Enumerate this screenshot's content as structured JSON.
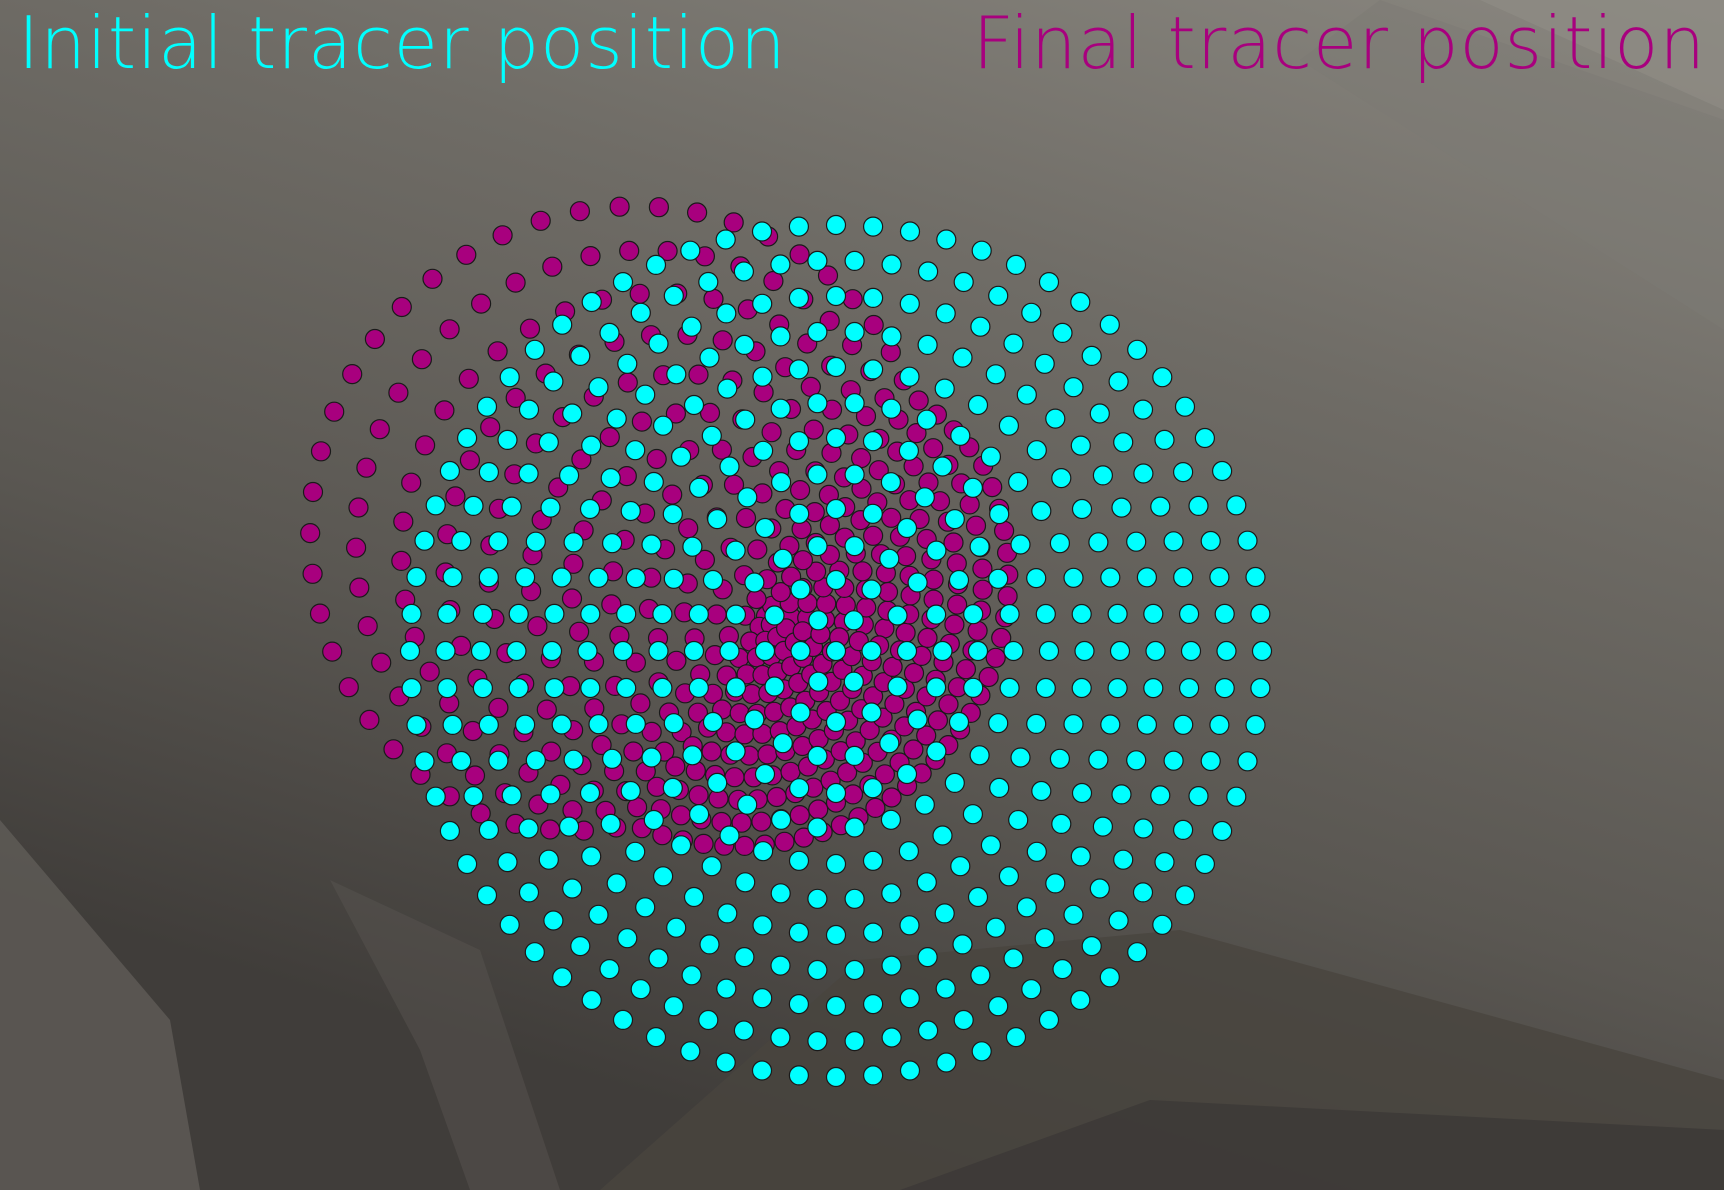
{
  "labels": {
    "initial": "Initial tracer position",
    "final": "Final tracer position"
  },
  "colors": {
    "initial": "#00ffff",
    "final": "#a8007e",
    "outline": "#1a1a1a",
    "background_light": "#8a8780",
    "background_dark": "#403d3a"
  },
  "tracers": {
    "initial": {
      "rings": 12,
      "ring_spacing": 1,
      "points_per_ring_step": 6
    },
    "final_distortion": "outward stretch toward upper-left, inward toward lower-right"
  }
}
